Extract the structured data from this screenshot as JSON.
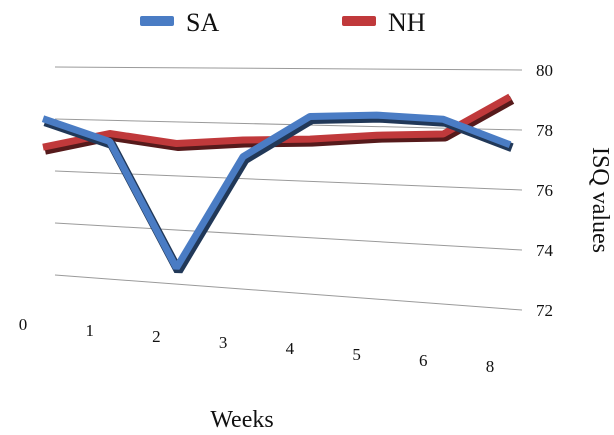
{
  "chart_data": {
    "type": "line",
    "title": "",
    "xlabel": "Weeks",
    "ylabel": "ISQ values",
    "categories": [
      "0",
      "1",
      "2",
      "3",
      "4",
      "5",
      "6",
      "8"
    ],
    "ylim": [
      72,
      80
    ],
    "yticks": [
      "72",
      "74",
      "76",
      "78",
      "80"
    ],
    "grid": true,
    "legend_position": "top",
    "y_axis_side": "right",
    "series": [
      {
        "name": "SA",
        "color": "#4a7cc4",
        "values": [
          78.0,
          77.2,
          72.6,
          76.8,
          78.3,
          78.4,
          78.3,
          77.5
        ]
      },
      {
        "name": "NH",
        "color": "#c0393b",
        "values": [
          76.9,
          77.5,
          77.2,
          77.4,
          77.5,
          77.7,
          77.8,
          79.1
        ]
      }
    ]
  }
}
